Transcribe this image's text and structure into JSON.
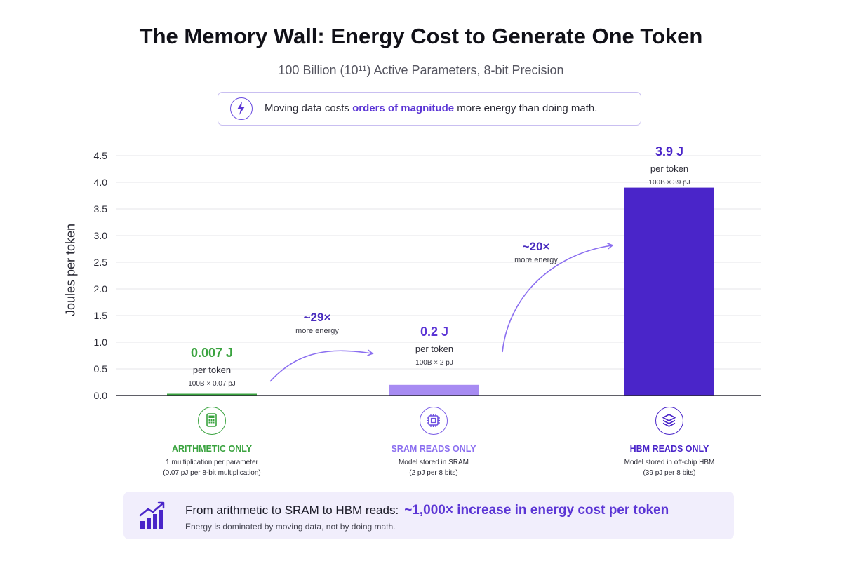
{
  "title": "The Memory Wall: Energy Cost to Generate One Token",
  "subtitle": "100 Billion (10¹¹) Active Parameters, 8-bit Precision",
  "callout": {
    "icon": "lightning-icon",
    "text_before": "Moving data costs",
    "text_emphasis": "orders of magnitude",
    "text_after": "more energy than doing math."
  },
  "colors": {
    "arithmetic": "#3aa33f",
    "sram": "#a78bf2",
    "hbm": "#4a25c9",
    "accent": "#5b35d5"
  },
  "chart_data": {
    "type": "bar",
    "ylabel": "Joules per token",
    "xlabel": "",
    "ylim": [
      0,
      4.5
    ],
    "yticks": [
      "0.0",
      "0.5",
      "1.0",
      "1.5",
      "2.0",
      "2.5",
      "3.0",
      "3.5",
      "4.0",
      "4.5"
    ],
    "grid": true,
    "categories": [
      "ARITHMETIC ONLY",
      "SRAM READS ONLY",
      "HBM READS ONLY"
    ],
    "values": [
      0.007,
      0.2,
      3.9
    ],
    "value_labels": [
      "0.007 J",
      "0.2 J",
      "3.9 J"
    ],
    "unit_labels": [
      "per token",
      "per token",
      "per token"
    ],
    "calc_labels": [
      "100B × 0.07 pJ",
      "100B × 2 pJ",
      "100B × 39 pJ"
    ],
    "descriptions": [
      [
        "1 multiplication per parameter",
        "(0.07 pJ per 8-bit multiplication)"
      ],
      [
        "Model stored in SRAM",
        "(2 pJ per 8 bits)"
      ],
      [
        "Model stored in off-chip HBM",
        "(39 pJ per 8 bits)"
      ]
    ],
    "icons": [
      "calculator-icon",
      "chip-icon",
      "layers-icon"
    ],
    "annotations": [
      {
        "from": "ARITHMETIC ONLY",
        "to": "SRAM READS ONLY",
        "label": "~29×",
        "sublabel": "more energy"
      },
      {
        "from": "SRAM READS ONLY",
        "to": "HBM READS ONLY",
        "label": "~20×",
        "sublabel": "more energy"
      }
    ]
  },
  "summary": {
    "icon": "bar-chart-trend-icon",
    "text": "From arithmetic to SRAM to HBM reads:",
    "highlight": "~1,000× increase in energy cost per token",
    "subtext": "Energy is dominated by moving data, not by doing math."
  }
}
